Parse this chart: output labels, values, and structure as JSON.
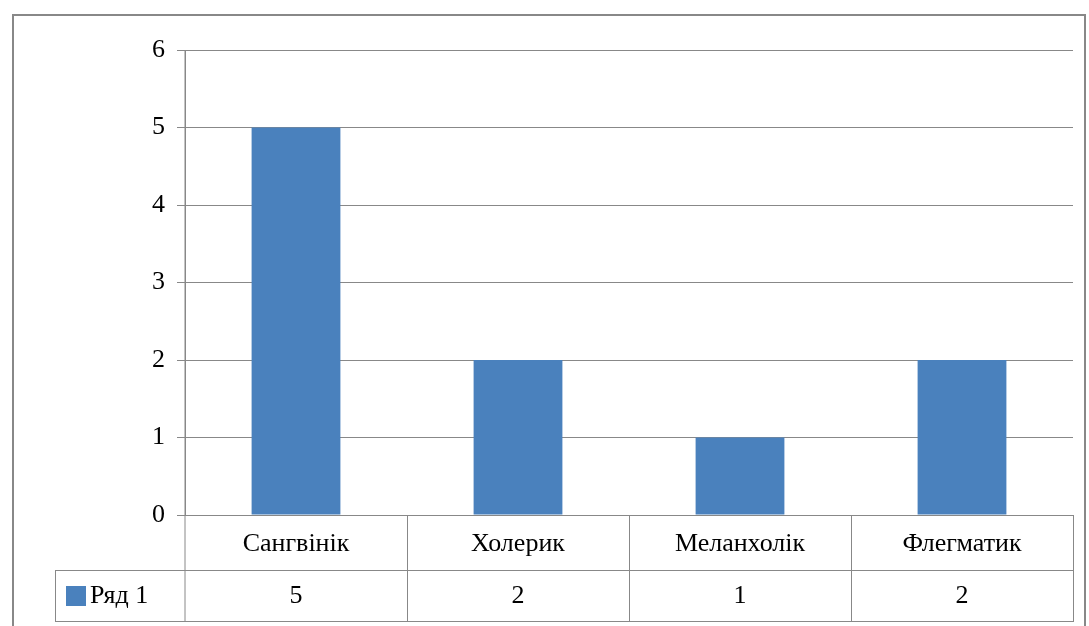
{
  "chart_data": {
    "type": "bar",
    "categories": [
      "Сангвінік",
      "Холерик",
      "Меланхолік",
      "Флегматик"
    ],
    "series": [
      {
        "name": "Ряд 1",
        "color": "#4a81bd",
        "values": [
          5,
          2,
          1,
          2
        ]
      }
    ],
    "ylim": [
      0,
      6
    ],
    "yticks": [
      0,
      1,
      2,
      3,
      4,
      5,
      6
    ],
    "grid": "y",
    "legend": "bottom left",
    "data_labels": true
  }
}
